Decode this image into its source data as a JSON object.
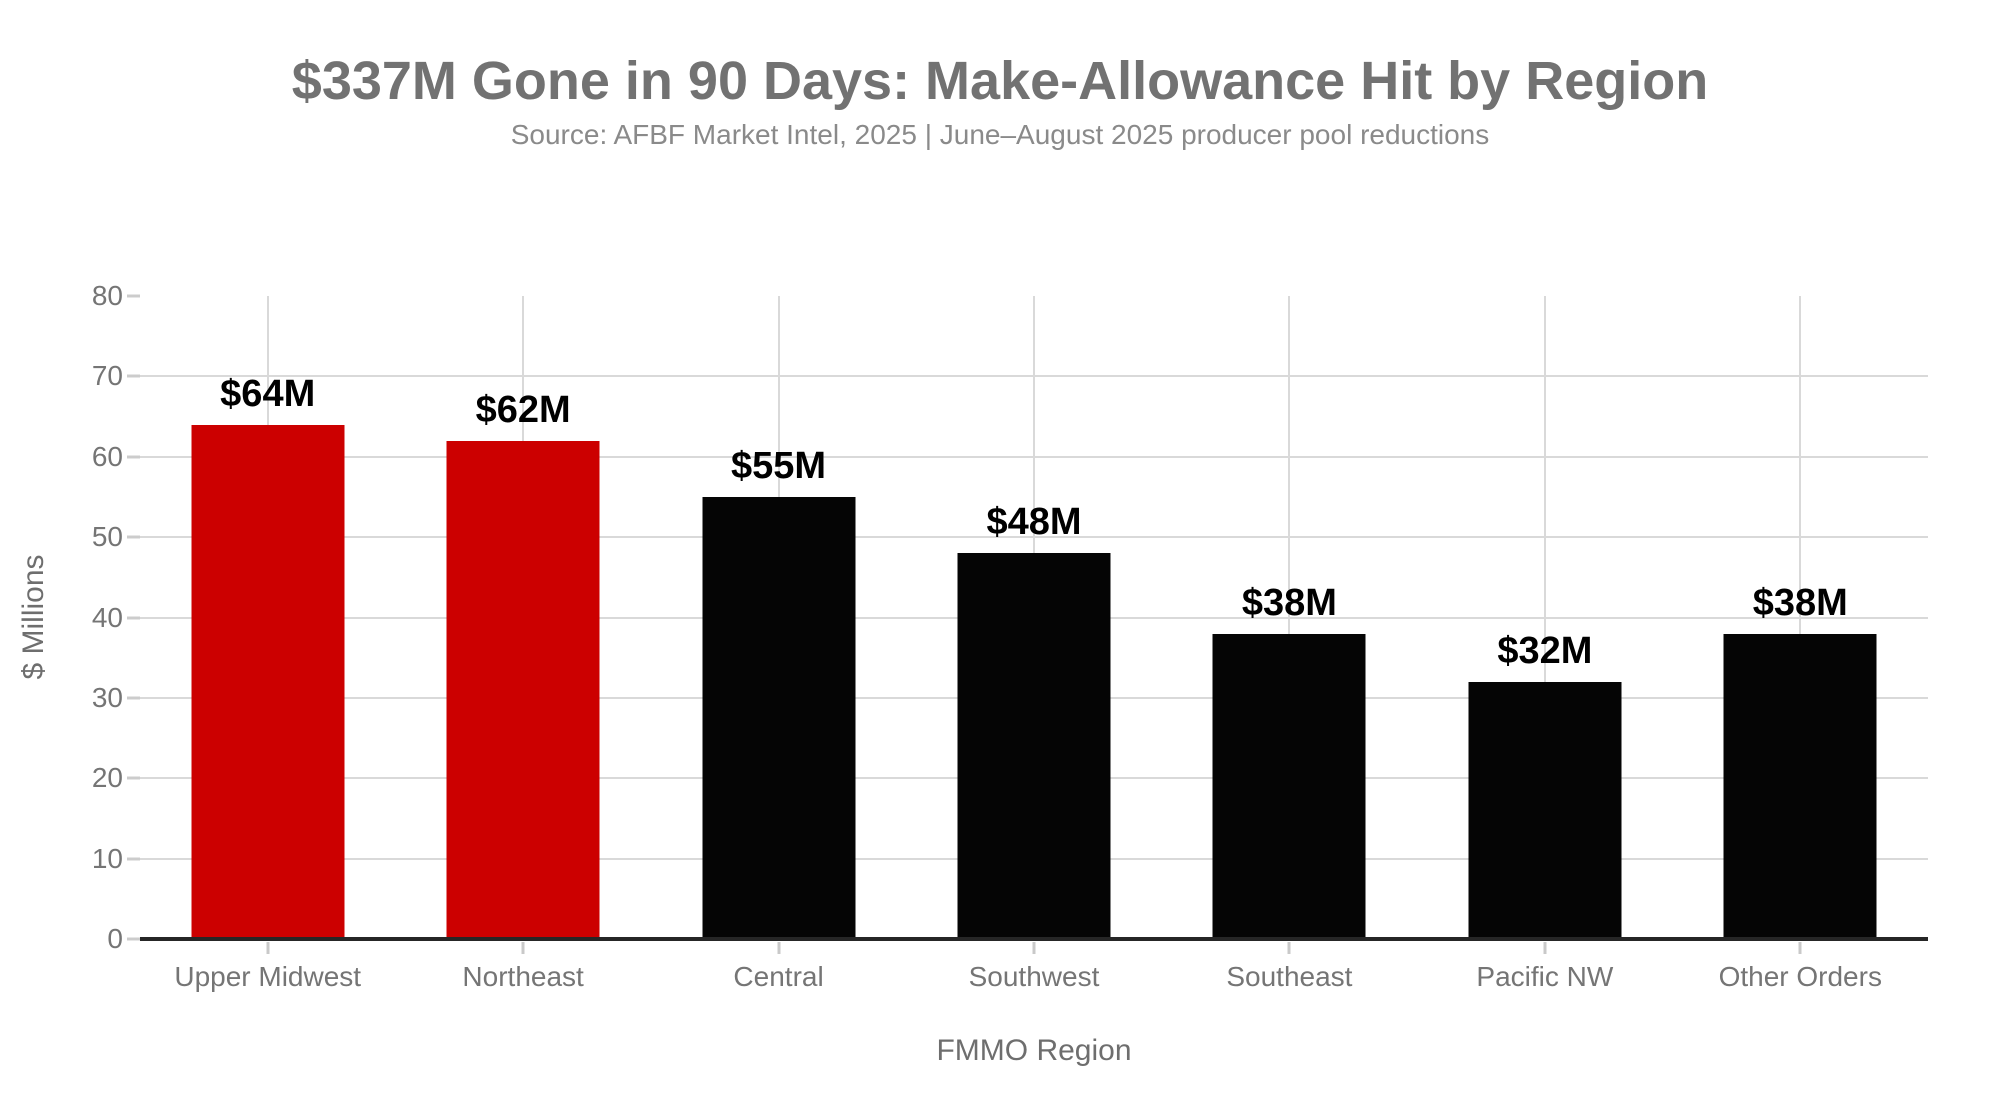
{
  "chart_data": {
    "type": "bar",
    "title": "$337M Gone in 90 Days: Make-Allowance Hit by Region",
    "subtitle": "Source: AFBF Market Intel, 2025 | June–August 2025 producer pool reductions",
    "categories": [
      "Upper Midwest",
      "Northeast",
      "Central",
      "Southwest",
      "Southeast",
      "Pacific NW",
      "Other Orders"
    ],
    "values": [
      64,
      62,
      55,
      48,
      38,
      32,
      38
    ],
    "value_labels": [
      "$64M",
      "$62M",
      "$55M",
      "$48M",
      "$38M",
      "$32M",
      "$38M"
    ],
    "bar_colors": [
      "#cc0000",
      "#cc0000",
      "#050505",
      "#050505",
      "#050505",
      "#050505",
      "#050505"
    ],
    "highlight_color": "#cc0000",
    "default_color": "#050505",
    "xlabel": "FMMO Region",
    "ylabel": "$ Millions",
    "ylim": [
      0,
      80
    ],
    "yticks": [
      0,
      10,
      20,
      30,
      40,
      50,
      60,
      70,
      80
    ],
    "grid": true,
    "legend_position": "none",
    "background_color": "#ffffff",
    "grid_color": "#d9d9d9",
    "axis_line_color": "#262626",
    "label_text_color": "#757575",
    "title_text_color": "#727272"
  }
}
